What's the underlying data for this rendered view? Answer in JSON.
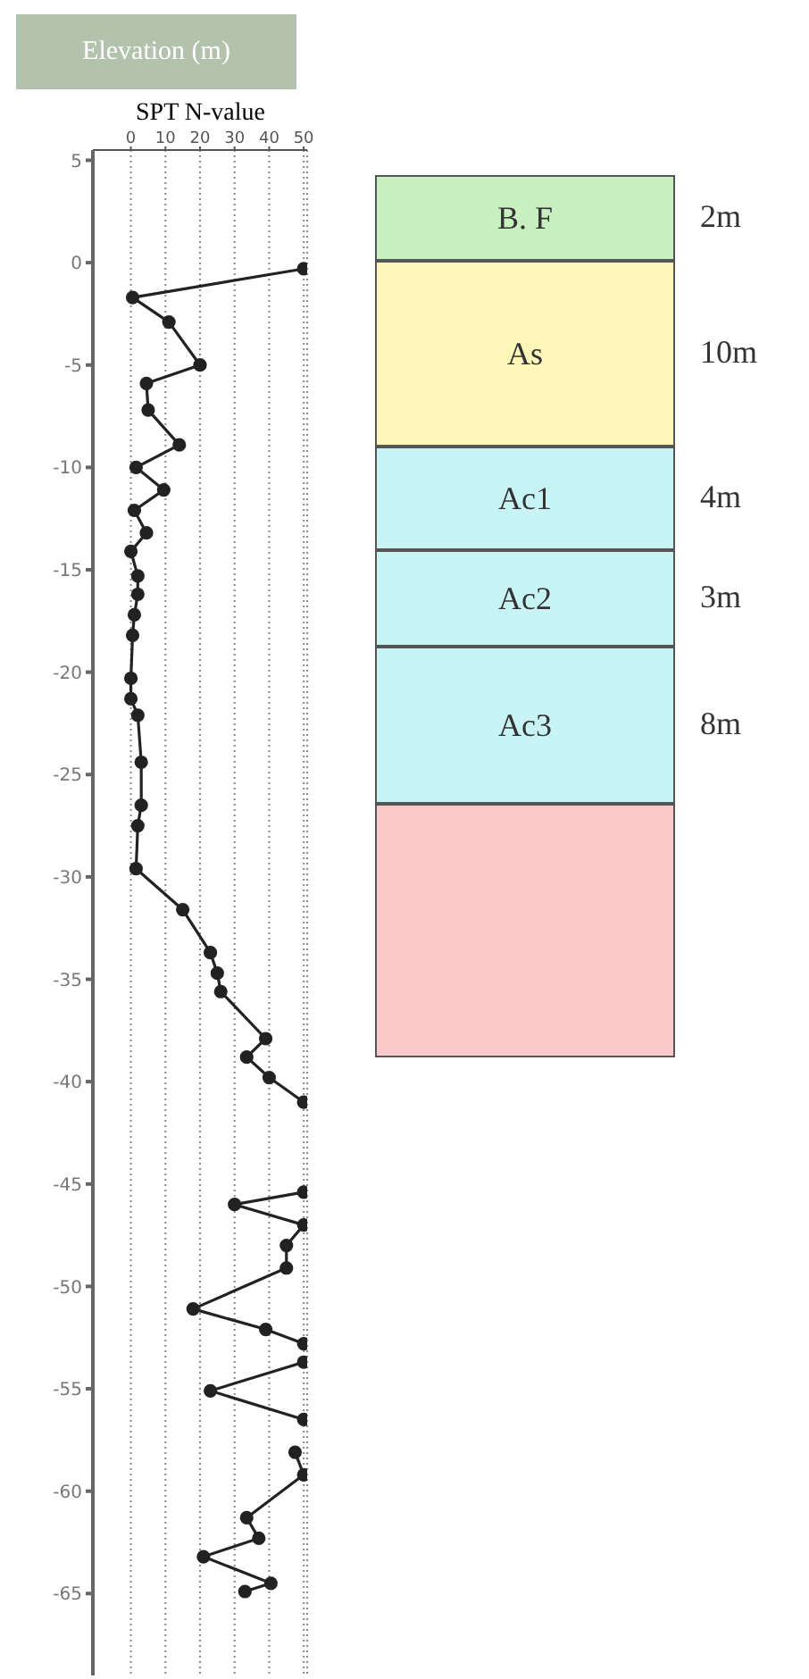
{
  "chart_data": {
    "type": "line",
    "ylabel": "Elevation (m)",
    "xlabel": "SPT N-value",
    "x": [
      50,
      0.5,
      11,
      20,
      4.5,
      5,
      14,
      1.5,
      9.5,
      1,
      4.5,
      0,
      2,
      2,
      1,
      0.5,
      0,
      0,
      2,
      3,
      3,
      2,
      1.5,
      15,
      23,
      25,
      26,
      39,
      33.5,
      40,
      50,
      null,
      50,
      30,
      50,
      45,
      45,
      18,
      39,
      50,
      null,
      50,
      23,
      50,
      null,
      47.5,
      50,
      33.5,
      37,
      21,
      40.5,
      33
    ],
    "series": [
      {
        "color": "#222222",
        "values": [
          -0.3,
          -1.7,
          -2.9,
          -5.0,
          -5.9,
          -7.2,
          -8.9,
          -10.0,
          -11.1,
          -12.1,
          -13.2,
          -14.1,
          -15.3,
          -16.2,
          -17.2,
          -18.2,
          -20.3,
          -21.3,
          -22.1,
          -24.4,
          -26.5,
          -27.5,
          -29.6,
          -31.6,
          -33.7,
          -34.7,
          -35.6,
          -37.9,
          -38.8,
          -39.8,
          -41.0,
          null,
          -45.4,
          -46.0,
          -47.0,
          -48.0,
          -49.1,
          -51.1,
          -52.1,
          -52.8,
          null,
          -53.7,
          -55.1,
          -56.5,
          null,
          -58.1,
          -59.2,
          -61.3,
          -62.3,
          -63.2,
          -64.5,
          -64.9
        ]
      }
    ],
    "xlim": [
      -11,
      51
    ],
    "xticks": [
      0,
      10,
      20,
      30,
      40,
      50
    ],
    "ylim": [
      -69,
      5.5
    ],
    "yticks": [
      5,
      0,
      -5,
      -10,
      -15,
      -20,
      -25,
      -30,
      -35,
      -40,
      -45,
      -50,
      -55,
      -60,
      -65
    ],
    "grid": "x",
    "marker": "circle",
    "line_style": "solid",
    "annotations": [
      "B. F",
      "2m",
      "As",
      "10m",
      "Ac1",
      "4m",
      "Ac2",
      "3m",
      "Ac3",
      "8m"
    ]
  }
}
